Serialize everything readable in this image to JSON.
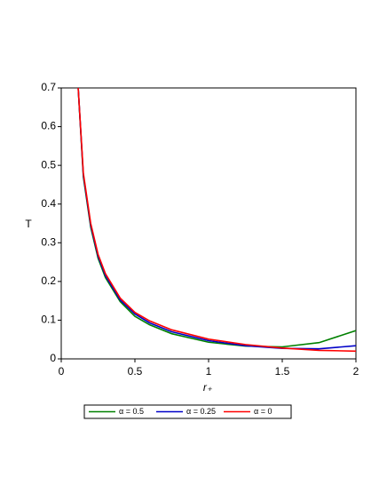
{
  "chart_data": {
    "type": "line",
    "x_label": "r₊",
    "y_label": "T",
    "x": [
      0.115,
      0.15,
      0.2,
      0.25,
      0.3,
      0.4,
      0.5,
      0.6,
      0.75,
      1,
      1.25,
      1.5,
      1.75,
      2
    ],
    "series": [
      {
        "name": "α = 0.5",
        "color": "#008000",
        "values": [
          0.7,
          0.47,
          0.34,
          0.26,
          0.21,
          0.148,
          0.11,
          0.088,
          0.065,
          0.043,
          0.033,
          0.031,
          0.042,
          0.073
        ]
      },
      {
        "name": "α = 0.25",
        "color": "#0000c8",
        "values": [
          0.7,
          0.475,
          0.345,
          0.265,
          0.215,
          0.152,
          0.116,
          0.093,
          0.07,
          0.047,
          0.034,
          0.027,
          0.026,
          0.034
        ]
      },
      {
        "name": "α = 0",
        "color": "#ff0000",
        "values": [
          0.7,
          0.48,
          0.35,
          0.27,
          0.22,
          0.157,
          0.12,
          0.098,
          0.075,
          0.051,
          0.037,
          0.028,
          0.022,
          0.02
        ]
      }
    ],
    "xlim": [
      0,
      2
    ],
    "xticks": [
      0,
      0.5,
      1,
      1.5,
      2
    ],
    "ylim": [
      0,
      0.7
    ],
    "yticks": [
      0,
      0.1,
      0.2,
      0.3,
      0.4,
      0.5,
      0.6,
      0.7
    ],
    "legend": "bottom"
  }
}
